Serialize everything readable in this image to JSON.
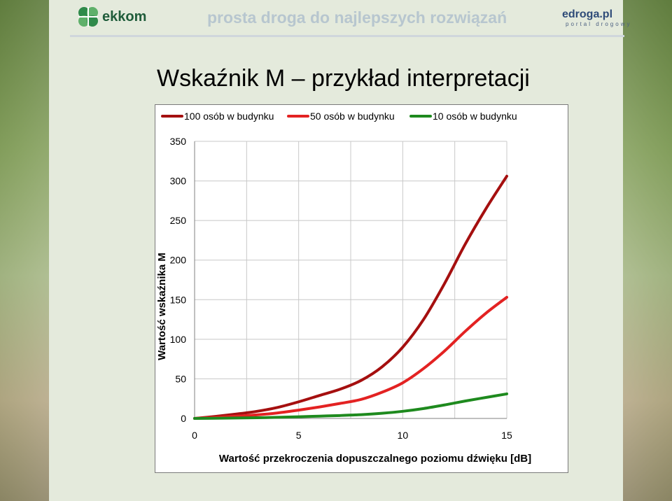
{
  "header": {
    "brand_left": "ekkom",
    "tagline": "prosta droga do najlepszych rozwiązań",
    "brand_right": "edroga.pl",
    "brand_right_sub": "portal drogowy"
  },
  "title": "Wskaźnik M – przykład interpretacji",
  "chart_data": {
    "type": "line",
    "xlabel": "Wartość przekroczenia dopuszczalnego poziomu dźwięku [dB]",
    "ylabel": "Wartość wskaźnika M",
    "xlim": [
      0,
      15
    ],
    "ylim": [
      0,
      350
    ],
    "xticks": [
      0,
      5,
      10,
      15
    ],
    "yticks": [
      0,
      50,
      100,
      150,
      200,
      250,
      300,
      350
    ],
    "grid": true,
    "legend": "top",
    "x": [
      0,
      1,
      2,
      3,
      4,
      5,
      6,
      7,
      8,
      9,
      10,
      11,
      12,
      13,
      14,
      15
    ],
    "series": [
      {
        "name": "100 osób w budynku",
        "color": "#a50f0f",
        "values": [
          0,
          2.5,
          5.5,
          9,
          14,
          21,
          29,
          37,
          48,
          65,
          90,
          125,
          170,
          220,
          265,
          306
        ]
      },
      {
        "name": "50 osób w budynku",
        "color": "#e32222",
        "values": [
          0,
          1.2,
          2.8,
          4.5,
          7,
          10.5,
          14.5,
          19,
          24,
          33,
          45,
          63,
          85,
          110,
          133,
          153
        ]
      },
      {
        "name": "10 osób w budynku",
        "color": "#1e8a1e",
        "values": [
          0,
          0.2,
          0.5,
          0.9,
          1.4,
          2.1,
          2.9,
          3.7,
          4.8,
          6.5,
          9,
          12.5,
          17,
          22,
          26.5,
          31
        ]
      }
    ]
  }
}
